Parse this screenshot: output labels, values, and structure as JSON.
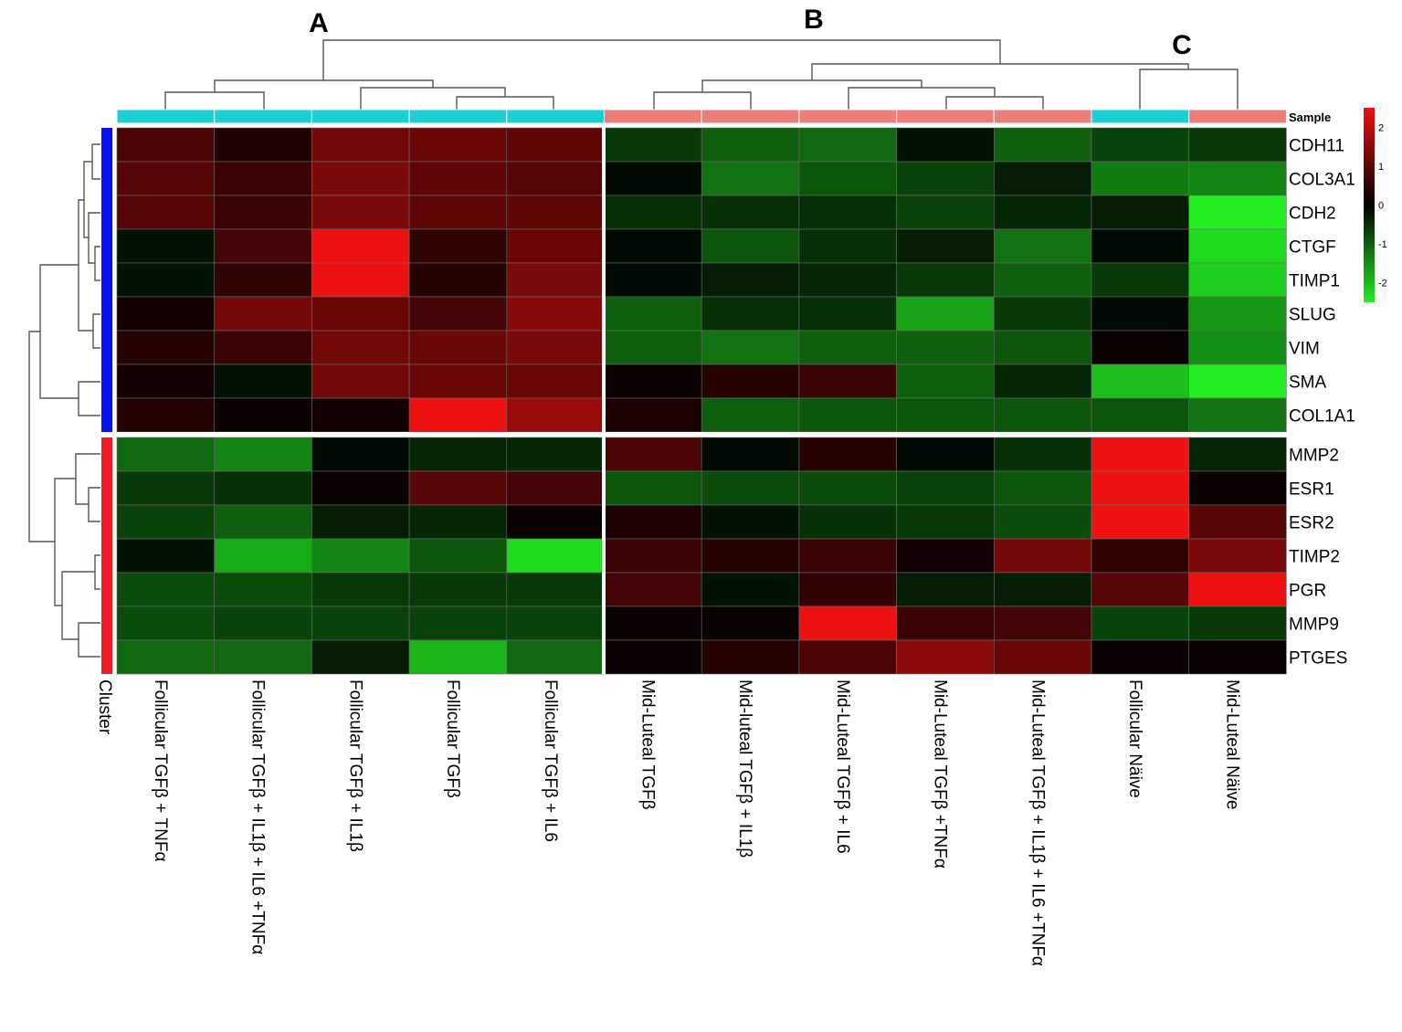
{
  "chart_data": {
    "type": "heatmap",
    "title": "",
    "group_labels": [
      "A",
      "B",
      "C"
    ],
    "sample_track_label": "Sample",
    "cluster_track_label": "Cluster",
    "columns": [
      "Follicular TGFβ + TNFα",
      "Follicular TGFβ + IL1β + IL6 +TNFα",
      "Follicular TGFβ + IL1β",
      "Follicular TGFβ",
      "Follicular TGFβ + IL6",
      "Mid-Luteal TGFβ",
      "Mid-luteal TGFβ + IL1β",
      "Mid-Luteal TGFβ + IL6",
      "Mid-Luteal TGFβ +TNFα",
      "Mid-Luteal TGFβ + IL1β + IL6 +TNFα",
      "Follicular Näive",
      "Mid-Luteal Näive"
    ],
    "column_sample_type": [
      "Follicular",
      "Follicular",
      "Follicular",
      "Follicular",
      "Follicular",
      "Mid-Luteal",
      "Mid-Luteal",
      "Mid-Luteal",
      "Mid-Luteal",
      "Mid-Luteal",
      "Follicular",
      "Mid-Luteal"
    ],
    "rows": [
      "CDH11",
      "COL3A1",
      "CDH2",
      "CTGF",
      "TIMP1",
      "SLUG",
      "VIM",
      "SMA",
      "COL1A1",
      "MMP2",
      "ESR1",
      "ESR2",
      "TIMP2",
      "PGR",
      "MMP9",
      "PTGES"
    ],
    "row_cluster": [
      1,
      1,
      1,
      1,
      1,
      1,
      1,
      1,
      1,
      2,
      2,
      2,
      2,
      2,
      2,
      2
    ],
    "values": [
      [
        0.8,
        0.3,
        1.2,
        1.1,
        1.0,
        -0.6,
        -1.0,
        -1.1,
        -0.2,
        -1.0,
        -0.7,
        -0.6
      ],
      [
        0.9,
        0.6,
        1.3,
        1.0,
        0.9,
        -0.1,
        -1.2,
        -0.9,
        -0.7,
        -0.3,
        -1.3,
        -1.4
      ],
      [
        0.9,
        0.6,
        1.3,
        1.0,
        1.0,
        -0.5,
        -0.5,
        -0.5,
        -0.7,
        -0.4,
        -0.3,
        -2.5
      ],
      [
        -0.2,
        0.7,
        2.5,
        0.5,
        1.1,
        -0.1,
        -0.9,
        -0.5,
        -0.3,
        -1.2,
        -0.1,
        -2.3
      ],
      [
        -0.2,
        0.5,
        2.6,
        0.4,
        1.3,
        -0.1,
        -0.3,
        -0.4,
        -0.6,
        -1.0,
        -0.6,
        -2.2
      ],
      [
        0.2,
        1.2,
        1.1,
        0.7,
        1.4,
        -1.0,
        -0.5,
        -0.5,
        -1.7,
        -0.6,
        -0.1,
        -1.6
      ],
      [
        0.4,
        0.6,
        1.2,
        1.1,
        1.3,
        -1.0,
        -1.2,
        -1.0,
        -1.0,
        -0.9,
        0.1,
        -1.5
      ],
      [
        0.2,
        -0.2,
        1.2,
        1.1,
        1.1,
        0.1,
        0.4,
        0.6,
        -1.0,
        -0.4,
        -2.0,
        -2.6
      ],
      [
        0.4,
        0.1,
        0.2,
        2.6,
        1.6,
        0.3,
        -1.0,
        -0.9,
        -0.9,
        -0.9,
        -0.9,
        -1.2
      ],
      [
        -1.1,
        -1.4,
        -0.1,
        -0.4,
        -0.4,
        0.8,
        -0.1,
        0.4,
        -0.1,
        -0.5,
        3.0,
        -0.4
      ],
      [
        -0.6,
        -0.5,
        0.1,
        0.9,
        0.7,
        -0.9,
        -0.8,
        -0.8,
        -0.7,
        -0.9,
        3.0,
        0.1
      ],
      [
        -0.7,
        -1.0,
        -0.3,
        -0.4,
        0.1,
        0.3,
        -0.2,
        -0.5,
        -0.6,
        -0.8,
        3.0,
        0.9
      ],
      [
        -0.2,
        -1.8,
        -1.4,
        -0.9,
        -2.3,
        0.6,
        0.4,
        0.6,
        0.2,
        1.2,
        0.5,
        1.3
      ],
      [
        -0.8,
        -0.8,
        -0.6,
        -0.6,
        -0.6,
        0.7,
        -0.2,
        0.5,
        -0.3,
        -0.3,
        0.9,
        2.8
      ],
      [
        -0.8,
        -0.7,
        -0.7,
        -0.7,
        -0.7,
        0.1,
        0.1,
        3.0,
        0.6,
        0.7,
        -0.7,
        -0.6
      ],
      [
        -1.1,
        -1.1,
        -0.3,
        -1.9,
        -1.1,
        0.1,
        0.4,
        0.8,
        1.5,
        1.1,
        0.1,
        0.1
      ]
    ],
    "color_scale": {
      "min": -2.5,
      "max": 2.5,
      "low_color": "#22ee22",
      "mid_color": "#000000",
      "high_color": "#ee1111"
    },
    "legend_ticks": [
      2,
      1,
      0,
      -1,
      -2
    ],
    "track_colors": {
      "Follicular": "#1ccfd4",
      "Mid-Luteal": "#ee7c78",
      "cluster_1": "#0a12ee",
      "cluster_2": "#ee1c24"
    },
    "legend_position": "top-right"
  }
}
